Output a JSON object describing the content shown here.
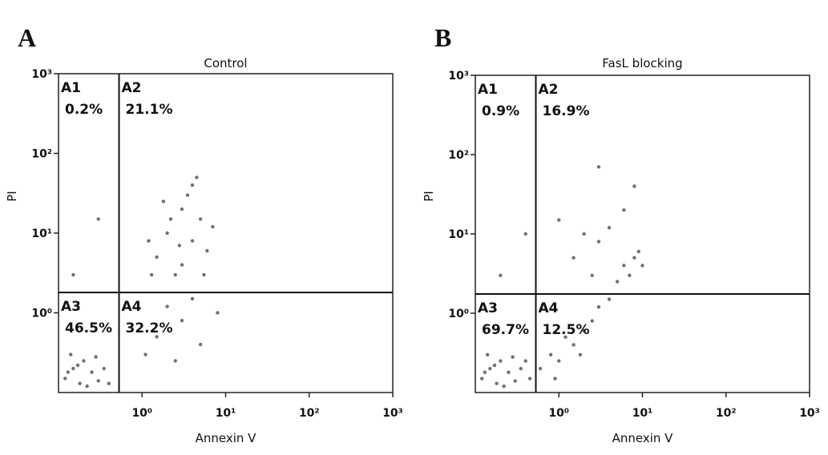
{
  "chart_data": [
    {
      "type": "scatter",
      "panel": "A",
      "title": "Control",
      "xlabel": "Annexin V",
      "ylabel": "PI",
      "xscale": "log",
      "yscale": "log",
      "xlim": [
        0.1,
        1000
      ],
      "ylim": [
        0.1,
        1000
      ],
      "xticks": [
        {
          "value": 1,
          "label": "10⁰"
        },
        {
          "value": 10,
          "label": "10¹"
        },
        {
          "value": 100,
          "label": "10²"
        },
        {
          "value": 1000,
          "label": "10³"
        }
      ],
      "yticks": [
        {
          "value": 1,
          "label": "10⁰"
        },
        {
          "value": 10,
          "label": "10¹"
        },
        {
          "value": 100,
          "label": "10²"
        },
        {
          "value": 1000,
          "label": "10³"
        }
      ],
      "gate_x": 0.53,
      "gate_y": 1.8,
      "quadrants": {
        "names": [
          "A1",
          "A2",
          "A3",
          "A4"
        ],
        "values": [
          0.2,
          21.1,
          46.5,
          32.2
        ],
        "value_labels": [
          "0.2%",
          "21.1%",
          "46.5%",
          "32.2%"
        ]
      },
      "color": "#333333",
      "x": [
        0.12,
        0.15,
        0.18,
        0.2,
        0.14,
        0.25,
        0.3,
        0.22,
        0.17,
        0.28,
        0.13,
        0.35,
        0.4,
        1.5,
        2,
        3,
        4,
        2.5,
        5,
        3.5,
        1.2,
        6,
        4.5,
        2.2,
        3,
        1.8,
        7,
        2.8,
        5.5,
        1.3,
        4,
        1.5,
        2,
        3,
        5,
        1.1,
        8,
        2.5,
        4,
        0.15,
        0.3
      ],
      "y": [
        0.15,
        0.2,
        0.13,
        0.25,
        0.3,
        0.18,
        0.14,
        0.12,
        0.22,
        0.28,
        0.18,
        0.2,
        0.13,
        5,
        10,
        20,
        8,
        3,
        15,
        30,
        8,
        6,
        50,
        15,
        4,
        25,
        12,
        7,
        3,
        3,
        40,
        0.5,
        1.2,
        0.8,
        0.4,
        0.3,
        1,
        0.25,
        1.5,
        3,
        15
      ]
    },
    {
      "type": "scatter",
      "panel": "B",
      "title": "FasL blocking",
      "xlabel": "Annexin V",
      "ylabel": "PI",
      "xscale": "log",
      "yscale": "log",
      "xlim": [
        0.1,
        1000
      ],
      "ylim": [
        0.1,
        1000
      ],
      "xticks": [
        {
          "value": 1,
          "label": "10⁰"
        },
        {
          "value": 10,
          "label": "10¹"
        },
        {
          "value": 100,
          "label": "10²"
        },
        {
          "value": 1000,
          "label": "10³"
        }
      ],
      "yticks": [
        {
          "value": 1,
          "label": "10⁰"
        },
        {
          "value": 10,
          "label": "10¹"
        },
        {
          "value": 100,
          "label": "10²"
        },
        {
          "value": 1000,
          "label": "10³"
        }
      ],
      "gate_x": 0.53,
      "gate_y": 1.75,
      "quadrants": {
        "names": [
          "A1",
          "A2",
          "A3",
          "A4"
        ],
        "values": [
          0.9,
          16.9,
          69.7,
          12.5
        ],
        "value_labels": [
          "0.9%",
          "16.9%",
          "69.7%",
          "12.5%"
        ]
      },
      "color": "#333333",
      "x": [
        0.12,
        0.15,
        0.18,
        0.2,
        0.14,
        0.25,
        0.3,
        0.22,
        0.17,
        0.28,
        0.13,
        0.35,
        0.4,
        0.45,
        0.6,
        0.8,
        1,
        1.5,
        2,
        2.5,
        3,
        1.2,
        4,
        0.9,
        1.8,
        5,
        6,
        8,
        7,
        9,
        3,
        2,
        1.5,
        4,
        10,
        6,
        2.5,
        1,
        8,
        3,
        0.2,
        0.4
      ],
      "y": [
        0.15,
        0.2,
        0.13,
        0.25,
        0.3,
        0.18,
        0.14,
        0.12,
        0.22,
        0.28,
        0.18,
        0.2,
        0.25,
        0.15,
        0.2,
        0.3,
        0.25,
        0.4,
        0.6,
        0.8,
        1.2,
        0.5,
        1.5,
        0.15,
        0.3,
        2.5,
        4,
        5,
        3,
        6,
        8,
        10,
        5,
        12,
        4,
        20,
        3,
        15,
        40,
        70,
        3,
        10
      ]
    }
  ]
}
